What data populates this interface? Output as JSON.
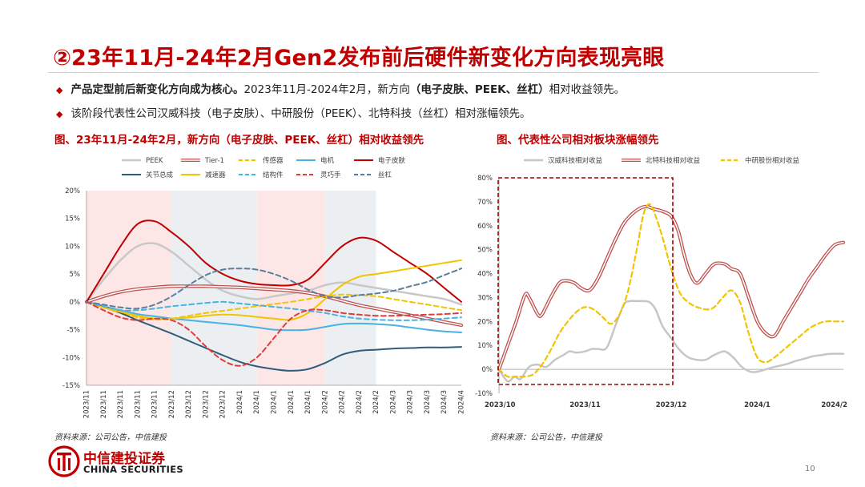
{
  "page": {
    "title": "②23年11月-24年2月Gen2发布前后硬件新变化方向表现亮眼",
    "bullets": [
      {
        "lead": "产品定型前后新变化方向成为核心。",
        "mid": "2023年11月-2024年2月，新方向",
        "bold": "（电子皮肤、PEEK、丝杠）",
        "tail": "相对收益领先。"
      },
      {
        "lead": "",
        "mid": "该阶段代表性公司汉威科技（电子皮肤）、中研股份（PEEK）、北特科技（丝杠）相对涨幅领先。",
        "bold": "",
        "tail": ""
      }
    ],
    "page_number": "10",
    "logo": {
      "cn": "中信建投证券",
      "en": "CHINA SECURITIES"
    }
  },
  "chart_data": [
    {
      "type": "line",
      "title": "图、23年11月-24年2月，新方向（电子皮肤、PEEK、丝杠）相对收益领先",
      "source": "资料来源：公司公告，中信建投",
      "categories": [
        "2023/11",
        "2023/11",
        "2023/11",
        "2023/11",
        "2023/11",
        "2023/12",
        "2023/12",
        "2023/12",
        "2023/12",
        "2024/1",
        "2024/1",
        "2024/1",
        "2024/1",
        "2024/1",
        "2024/2",
        "2024/2",
        "2024/2",
        "2024/2",
        "2024/3",
        "2024/3",
        "2024/3",
        "2024/3",
        "2024/4"
      ],
      "ylim": [
        -15,
        20
      ],
      "yticks": [
        "20%",
        "15%",
        "10%",
        "5%",
        "0%",
        "-5%",
        "-10%",
        "-15%"
      ],
      "shaded_bands": [
        {
          "from": 0,
          "to": 5,
          "color": "#fde6e6"
        },
        {
          "from": 5,
          "to": 10,
          "color": "#eceff2"
        },
        {
          "from": 10,
          "to": 14,
          "color": "#fde6e6"
        },
        {
          "from": 14,
          "to": 17,
          "color": "#eceff2"
        }
      ],
      "series": [
        {
          "name": "PEEK",
          "color": "#c8c8c8",
          "style": "solid",
          "width": 2.5,
          "values": [
            0,
            4,
            7.5,
            10,
            10.5,
            9,
            6.5,
            4,
            2,
            1,
            0.5,
            1,
            1.5,
            2,
            3,
            3.5,
            3,
            2.5,
            2,
            1.5,
            1,
            0.5,
            -0.5
          ]
        },
        {
          "name": "Tier-1",
          "color": "#c0504d",
          "style": "double",
          "width": 1.4,
          "values": [
            0,
            1,
            1.8,
            2.3,
            2.6,
            2.8,
            2.8,
            2.8,
            2.7,
            2.6,
            2.4,
            2.2,
            2.0,
            1.6,
            1.0,
            0.2,
            -0.6,
            -1.2,
            -1.8,
            -2.4,
            -3,
            -3.6,
            -4.2
          ]
        },
        {
          "name": "传感器",
          "color": "#f2c400",
          "style": "dashed",
          "width": 2,
          "values": [
            0,
            -1,
            -2,
            -2.8,
            -3.2,
            -3,
            -2.5,
            -2,
            -1.6,
            -1.2,
            -0.8,
            -0.4,
            0,
            0.5,
            1,
            1.3,
            1.2,
            1,
            0.5,
            0,
            -0.5,
            -1,
            -1.5
          ]
        },
        {
          "name": "电机",
          "color": "#4ab2e0",
          "style": "solid",
          "width": 2,
          "values": [
            0,
            -0.8,
            -1.5,
            -2.2,
            -2.6,
            -3,
            -3.3,
            -3.6,
            -3.9,
            -4.2,
            -4.6,
            -5,
            -5.1,
            -5,
            -4.5,
            -4,
            -3.9,
            -4,
            -4.2,
            -4.6,
            -5,
            -5.3,
            -5.5
          ]
        },
        {
          "name": "电子皮肤",
          "color": "#c00000",
          "style": "solid",
          "width": 2,
          "values": [
            0,
            5,
            10,
            14,
            14.5,
            12.5,
            10,
            7,
            5,
            3.8,
            3.2,
            3,
            3,
            4,
            7,
            10,
            11.5,
            11,
            9,
            7,
            5,
            2.5,
            0
          ]
        },
        {
          "name": "关节总成",
          "color": "#2e5c7a",
          "style": "solid",
          "width": 2,
          "values": [
            0,
            -0.8,
            -2,
            -3.3,
            -4.5,
            -5.7,
            -7,
            -8.3,
            -9.6,
            -10.8,
            -11.6,
            -12.1,
            -12.4,
            -12.1,
            -11,
            -9.5,
            -8.8,
            -8.6,
            -8.4,
            -8.3,
            -8.2,
            -8.2,
            -8.1
          ]
        },
        {
          "name": "减速器",
          "color": "#f2c400",
          "style": "solid",
          "width": 2,
          "values": [
            0,
            -1,
            -1.8,
            -2.5,
            -3,
            -3,
            -2.8,
            -2.5,
            -2.3,
            -2.4,
            -2.7,
            -3,
            -3.2,
            -2,
            0.5,
            3,
            4.5,
            5,
            5.5,
            6,
            6.5,
            7,
            7.5
          ]
        },
        {
          "name": "结构件",
          "color": "#4ab2e0",
          "style": "dashed",
          "width": 2,
          "values": [
            0,
            -0.8,
            -1.5,
            -1.5,
            -1.2,
            -0.8,
            -0.5,
            -0.2,
            0,
            -0.3,
            -0.6,
            -0.9,
            -1.2,
            -1.6,
            -2,
            -2.6,
            -3,
            -3.2,
            -3.3,
            -3.3,
            -3.2,
            -3,
            -2.8
          ]
        },
        {
          "name": "灵巧手",
          "color": "#e03c3c",
          "style": "dashed",
          "width": 2,
          "values": [
            0,
            -1.5,
            -2.8,
            -3.3,
            -3,
            -3.3,
            -5,
            -8,
            -10.5,
            -11.5,
            -10,
            -6.5,
            -3,
            -1.5,
            -1.5,
            -2,
            -2.3,
            -2.5,
            -2.5,
            -2.4,
            -2.3,
            -2.2,
            -2
          ]
        },
        {
          "name": "丝杠",
          "color": "#5a7ea0",
          "style": "dashed",
          "width": 2,
          "values": [
            0,
            -0.5,
            -1,
            -1.2,
            -0.5,
            1,
            3,
            4.8,
            5.8,
            6,
            5.8,
            5,
            3.8,
            2.2,
            1,
            0.8,
            1.2,
            1.5,
            2,
            2.8,
            3.6,
            4.8,
            6
          ]
        }
      ]
    },
    {
      "type": "line",
      "title": "图、代表性公司相对板块涨幅领先",
      "source": "资料来源：公司公告，中信建投",
      "ylim": [
        -10,
        80
      ],
      "yticks": [
        "80%",
        "70%",
        "60%",
        "50%",
        "40%",
        "30%",
        "20%",
        "10%",
        "0%",
        "-10%"
      ],
      "xticks": [
        "2023/10",
        "2023/11",
        "2023/12",
        "2024/1",
        "2024/2"
      ],
      "highlight_box": {
        "from_label": "2023/10",
        "to_label": "2023/12"
      },
      "series": [
        {
          "name": "汉威科技相对收益",
          "color": "#c6c6c6",
          "style": "solid",
          "width": 2.5,
          "x": [
            0,
            0.1,
            0.18,
            0.25,
            0.35,
            0.45,
            0.55,
            0.65,
            0.75,
            0.82,
            0.9,
            1.0,
            1.08,
            1.15,
            1.25,
            1.35,
            1.45,
            1.52,
            1.6,
            1.68,
            1.75,
            1.82,
            1.9,
            2.0,
            2.1,
            2.2,
            2.3,
            2.4,
            2.5,
            2.62,
            2.72,
            2.82,
            2.92,
            3.0,
            3.1,
            3.2,
            3.32,
            3.45,
            3.55,
            3.65,
            3.75,
            3.85,
            4.0
          ],
          "y": [
            0,
            -5,
            -3,
            -4,
            1,
            2,
            1,
            4,
            6,
            7.5,
            7,
            7.5,
            8.5,
            8.5,
            9,
            18,
            27,
            28.5,
            28.5,
            28.5,
            28,
            25,
            18,
            13,
            8,
            5,
            4,
            4,
            6,
            7.5,
            5,
            1,
            -1,
            -1,
            0,
            1,
            2,
            3.5,
            4.5,
            5.5,
            6,
            6.5,
            6.5
          ]
        },
        {
          "name": "北特科技相对收益",
          "color": "#c0504d",
          "style": "double",
          "width": 1.4,
          "x": [
            0,
            0.1,
            0.2,
            0.3,
            0.35,
            0.45,
            0.5,
            0.6,
            0.7,
            0.78,
            0.88,
            0.95,
            1.05,
            1.15,
            1.25,
            1.35,
            1.45,
            1.55,
            1.65,
            1.72,
            1.8,
            1.9,
            2.0,
            2.08,
            2.15,
            2.22,
            2.3,
            2.4,
            2.5,
            2.62,
            2.7,
            2.8,
            2.9,
            3.0,
            3.1,
            3.2,
            3.3,
            3.4,
            3.5,
            3.6,
            3.7,
            3.8,
            3.9,
            4.0
          ],
          "y": [
            0,
            10,
            20,
            31,
            30,
            23,
            23,
            30,
            36,
            37,
            36,
            34,
            33,
            38,
            46,
            54,
            61,
            65,
            67.5,
            68,
            67,
            66,
            64,
            58,
            48,
            40,
            36,
            40,
            44,
            44,
            42,
            40,
            30,
            20,
            15,
            14,
            20,
            26,
            32,
            38,
            43,
            48,
            52,
            53
          ]
        },
        {
          "name": "中研股份相对收益",
          "color": "#f2c400",
          "style": "dashed",
          "width": 2.2,
          "x": [
            0,
            0.1,
            0.2,
            0.3,
            0.4,
            0.5,
            0.6,
            0.7,
            0.8,
            0.9,
            1.0,
            1.1,
            1.2,
            1.3,
            1.4,
            1.5,
            1.6,
            1.68,
            1.75,
            1.82,
            1.9,
            2.0,
            2.1,
            2.2,
            2.3,
            2.42,
            2.5,
            2.6,
            2.7,
            2.8,
            2.9,
            3.0,
            3.1,
            3.2,
            3.3,
            3.4,
            3.5,
            3.6,
            3.7,
            3.8,
            3.9,
            4.0
          ],
          "y": [
            0,
            -3,
            -3,
            -3,
            -2,
            2,
            8,
            15,
            20,
            24,
            26,
            25,
            22,
            19,
            23,
            33,
            50,
            65,
            69,
            64,
            55,
            42,
            32,
            28,
            26,
            25,
            26,
            30,
            33,
            28,
            15,
            5,
            3,
            5,
            8,
            11,
            14,
            17,
            19,
            20,
            20,
            20
          ]
        }
      ]
    }
  ]
}
